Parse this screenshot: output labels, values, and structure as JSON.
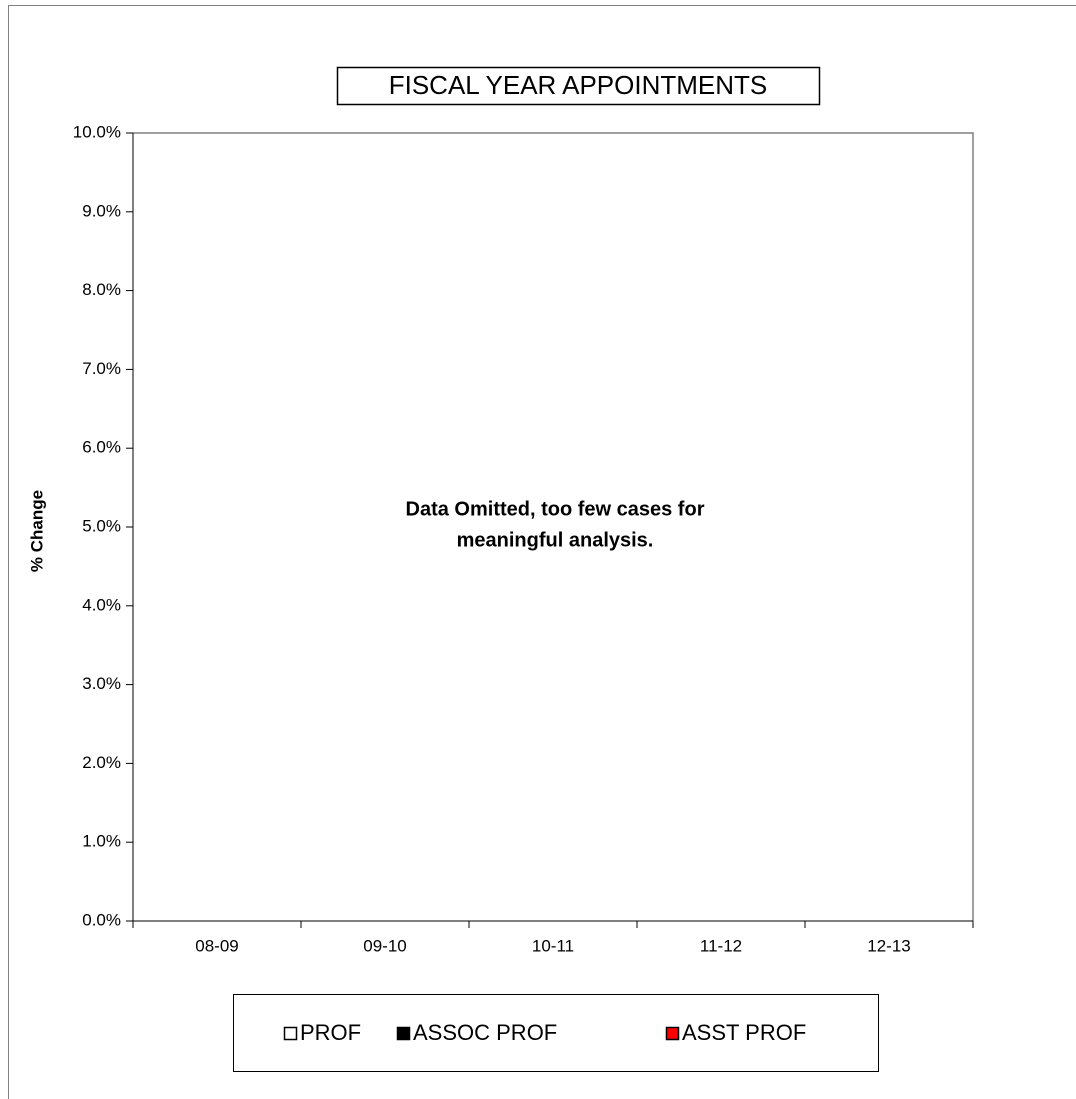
{
  "chart_data": {
    "type": "bar",
    "title": "FISCAL YEAR APPOINTMENTS",
    "y_axis_label": "% Change",
    "annotation": [
      "Data Omitted, too few cases for",
      "meaningful analysis."
    ],
    "categories": [
      "08-09",
      "09-10",
      "10-11",
      "11-12",
      "12-13"
    ],
    "series": [
      {
        "name": "PROF",
        "color": "#ffffff",
        "values": [
          null,
          null,
          null,
          null,
          null
        ]
      },
      {
        "name": "ASSOC PROF",
        "color": "#000000",
        "values": [
          null,
          null,
          null,
          null,
          null
        ]
      },
      {
        "name": "ASST PROF",
        "color": "#ff0000",
        "values": [
          null,
          null,
          null,
          null,
          null
        ]
      }
    ],
    "ylim": [
      0,
      10
    ],
    "yticks": [
      {
        "value": 0,
        "label": "0.0%"
      },
      {
        "value": 1,
        "label": "1.0%"
      },
      {
        "value": 2,
        "label": "2.0%"
      },
      {
        "value": 3,
        "label": "3.0%"
      },
      {
        "value": 4,
        "label": "4.0%"
      },
      {
        "value": 5,
        "label": "5.0%"
      },
      {
        "value": 6,
        "label": "6.0%"
      },
      {
        "value": 7,
        "label": "7.0%"
      },
      {
        "value": 8,
        "label": "8.0%"
      },
      {
        "value": 9,
        "label": "9.0%"
      },
      {
        "value": 10,
        "label": "10.0%"
      }
    ],
    "legend": "bottom"
  }
}
